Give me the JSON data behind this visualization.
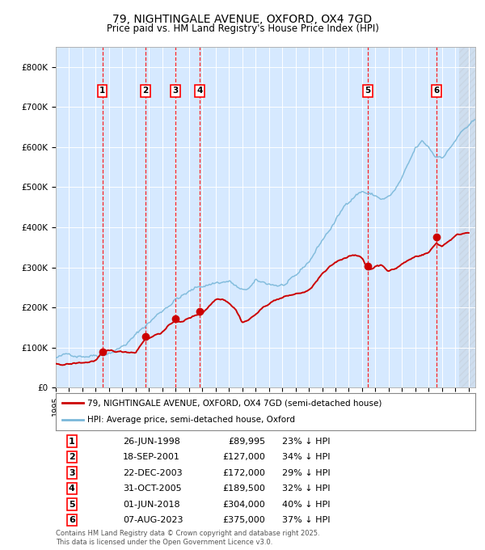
{
  "title": "79, NIGHTINGALE AVENUE, OXFORD, OX4 7GD",
  "subtitle": "Price paid vs. HM Land Registry's House Price Index (HPI)",
  "legend_line1": "79, NIGHTINGALE AVENUE, OXFORD, OX4 7GD (semi-detached house)",
  "legend_line2": "HPI: Average price, semi-detached house, Oxford",
  "footer1": "Contains HM Land Registry data © Crown copyright and database right 2025.",
  "footer2": "This data is licensed under the Open Government Licence v3.0.",
  "ylim": [
    0,
    850000
  ],
  "yticks": [
    0,
    100000,
    200000,
    300000,
    400000,
    500000,
    600000,
    700000,
    800000
  ],
  "ytick_labels": [
    "£0",
    "£100K",
    "£200K",
    "£300K",
    "£400K",
    "£500K",
    "£600K",
    "£700K",
    "£800K"
  ],
  "hpi_color": "#7ab8d9",
  "price_color": "#cc0000",
  "bg_color": "#ddeeff",
  "sale_markers": [
    {
      "num": 1,
      "year": 1998.49,
      "price": 89995,
      "date": "26-JUN-1998",
      "pct": "23%"
    },
    {
      "num": 2,
      "year": 2001.72,
      "price": 127000,
      "date": "18-SEP-2001",
      "pct": "34%"
    },
    {
      "num": 3,
      "year": 2003.98,
      "price": 172000,
      "date": "22-DEC-2003",
      "pct": "29%"
    },
    {
      "num": 4,
      "year": 2005.83,
      "price": 189500,
      "date": "31-OCT-2005",
      "pct": "32%"
    },
    {
      "num": 5,
      "year": 2018.42,
      "price": 304000,
      "date": "01-JUN-2018",
      "pct": "40%"
    },
    {
      "num": 6,
      "year": 2023.59,
      "price": 375000,
      "date": "07-AUG-2023",
      "pct": "37%"
    }
  ],
  "xmin": 1995.0,
  "xmax": 2026.5,
  "xticks": [
    1995,
    1996,
    1997,
    1998,
    1999,
    2000,
    2001,
    2002,
    2003,
    2004,
    2005,
    2006,
    2007,
    2008,
    2009,
    2010,
    2011,
    2012,
    2013,
    2014,
    2015,
    2016,
    2017,
    2018,
    2019,
    2020,
    2021,
    2022,
    2023,
    2024,
    2025,
    2026
  ],
  "hpi_anchors": [
    [
      1995.0,
      75000
    ],
    [
      1996.0,
      79000
    ],
    [
      1997.0,
      85000
    ],
    [
      1998.0,
      92000
    ],
    [
      1999.0,
      105000
    ],
    [
      2000.0,
      122000
    ],
    [
      2001.0,
      148000
    ],
    [
      2002.0,
      180000
    ],
    [
      2003.0,
      210000
    ],
    [
      2004.0,
      243000
    ],
    [
      2005.0,
      258000
    ],
    [
      2006.0,
      272000
    ],
    [
      2007.0,
      283000
    ],
    [
      2008.0,
      288000
    ],
    [
      2008.5,
      275000
    ],
    [
      2009.0,
      258000
    ],
    [
      2009.5,
      265000
    ],
    [
      2010.0,
      278000
    ],
    [
      2010.5,
      272000
    ],
    [
      2011.0,
      270000
    ],
    [
      2012.0,
      268000
    ],
    [
      2013.0,
      278000
    ],
    [
      2014.0,
      315000
    ],
    [
      2015.0,
      370000
    ],
    [
      2016.0,
      418000
    ],
    [
      2017.0,
      468000
    ],
    [
      2017.5,
      488000
    ],
    [
      2018.0,
      498000
    ],
    [
      2018.5,
      492000
    ],
    [
      2019.0,
      485000
    ],
    [
      2019.5,
      478000
    ],
    [
      2020.0,
      482000
    ],
    [
      2020.5,
      498000
    ],
    [
      2021.0,
      525000
    ],
    [
      2021.5,
      555000
    ],
    [
      2022.0,
      590000
    ],
    [
      2022.5,
      605000
    ],
    [
      2023.0,
      590000
    ],
    [
      2023.5,
      568000
    ],
    [
      2024.0,
      572000
    ],
    [
      2024.5,
      590000
    ],
    [
      2025.0,
      615000
    ],
    [
      2025.5,
      635000
    ],
    [
      2026.0,
      648000
    ],
    [
      2026.5,
      655000
    ]
  ],
  "price_anchors": [
    [
      1995.0,
      60000
    ],
    [
      1996.0,
      62000
    ],
    [
      1997.0,
      65000
    ],
    [
      1997.5,
      67000
    ],
    [
      1998.0,
      72000
    ],
    [
      1998.49,
      89995
    ],
    [
      1999.0,
      90000
    ],
    [
      2000.0,
      88000
    ],
    [
      2001.0,
      90000
    ],
    [
      2001.72,
      127000
    ],
    [
      2002.0,
      128000
    ],
    [
      2003.0,
      145000
    ],
    [
      2003.98,
      172000
    ],
    [
      2004.5,
      168000
    ],
    [
      2005.0,
      178000
    ],
    [
      2005.83,
      189500
    ],
    [
      2006.0,
      192000
    ],
    [
      2007.0,
      228000
    ],
    [
      2007.5,
      232000
    ],
    [
      2008.0,
      225000
    ],
    [
      2008.5,
      210000
    ],
    [
      2009.0,
      178000
    ],
    [
      2009.5,
      185000
    ],
    [
      2010.0,
      198000
    ],
    [
      2011.0,
      225000
    ],
    [
      2011.5,
      235000
    ],
    [
      2012.0,
      240000
    ],
    [
      2013.0,
      248000
    ],
    [
      2014.0,
      255000
    ],
    [
      2015.0,
      295000
    ],
    [
      2016.0,
      320000
    ],
    [
      2017.0,
      338000
    ],
    [
      2017.5,
      345000
    ],
    [
      2018.0,
      335000
    ],
    [
      2018.42,
      304000
    ],
    [
      2018.8,
      308000
    ],
    [
      2019.0,
      315000
    ],
    [
      2019.5,
      318000
    ],
    [
      2020.0,
      305000
    ],
    [
      2020.5,
      310000
    ],
    [
      2021.0,
      322000
    ],
    [
      2022.0,
      340000
    ],
    [
      2023.0,
      352000
    ],
    [
      2023.59,
      375000
    ],
    [
      2024.0,
      368000
    ],
    [
      2024.5,
      382000
    ],
    [
      2025.0,
      395000
    ],
    [
      2025.5,
      400000
    ],
    [
      2026.0,
      405000
    ]
  ]
}
